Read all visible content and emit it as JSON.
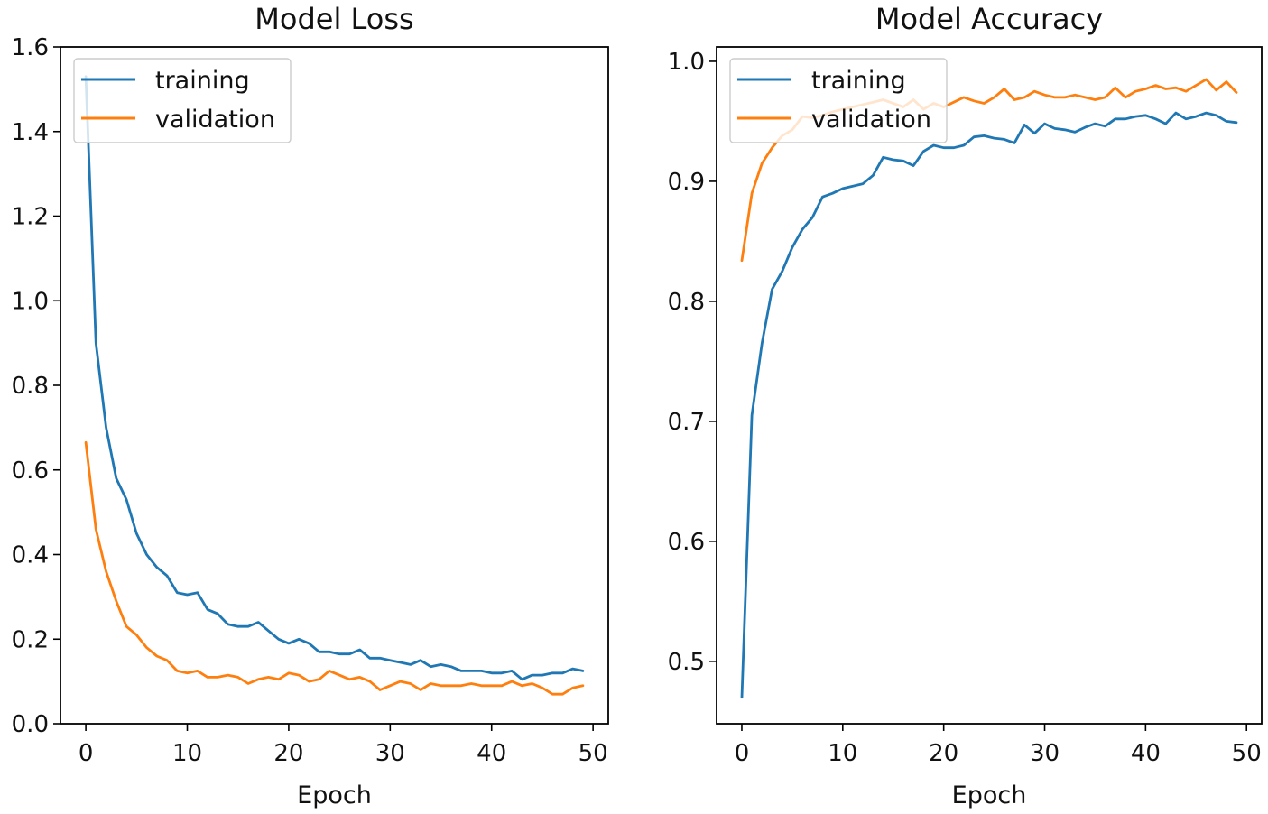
{
  "chart_data": [
    {
      "type": "line",
      "title": "Model Loss",
      "xlabel": "Epoch",
      "ylabel": "",
      "xlim": [
        -2.5,
        51.5
      ],
      "ylim": [
        0.0,
        1.6
      ],
      "xticks": [
        0,
        10,
        20,
        30,
        40,
        50
      ],
      "yticks": [
        0.0,
        0.2,
        0.4,
        0.6,
        0.8,
        1.0,
        1.2,
        1.4,
        1.6
      ],
      "ytick_format": 1,
      "legend_position": "top-left",
      "x": [
        0,
        1,
        2,
        3,
        4,
        5,
        6,
        7,
        8,
        9,
        10,
        11,
        12,
        13,
        14,
        15,
        16,
        17,
        18,
        19,
        20,
        21,
        22,
        23,
        24,
        25,
        26,
        27,
        28,
        29,
        30,
        31,
        32,
        33,
        34,
        35,
        36,
        37,
        38,
        39,
        40,
        41,
        42,
        43,
        44,
        45,
        46,
        47,
        48,
        49
      ],
      "series": [
        {
          "name": "training",
          "color": "#1f77b4",
          "values": [
            1.53,
            0.9,
            0.7,
            0.58,
            0.53,
            0.45,
            0.4,
            0.37,
            0.35,
            0.31,
            0.305,
            0.31,
            0.27,
            0.26,
            0.235,
            0.23,
            0.23,
            0.24,
            0.22,
            0.2,
            0.19,
            0.2,
            0.19,
            0.17,
            0.17,
            0.165,
            0.165,
            0.175,
            0.155,
            0.155,
            0.15,
            0.145,
            0.14,
            0.15,
            0.135,
            0.14,
            0.135,
            0.125,
            0.125,
            0.125,
            0.12,
            0.12,
            0.125,
            0.105,
            0.115,
            0.115,
            0.12,
            0.12,
            0.13,
            0.125
          ]
        },
        {
          "name": "validation",
          "color": "#ff7f0e",
          "values": [
            0.665,
            0.46,
            0.36,
            0.29,
            0.23,
            0.21,
            0.18,
            0.16,
            0.15,
            0.125,
            0.12,
            0.125,
            0.11,
            0.11,
            0.115,
            0.11,
            0.095,
            0.105,
            0.11,
            0.105,
            0.12,
            0.115,
            0.1,
            0.105,
            0.125,
            0.115,
            0.105,
            0.11,
            0.1,
            0.08,
            0.09,
            0.1,
            0.095,
            0.08,
            0.095,
            0.09,
            0.09,
            0.09,
            0.095,
            0.09,
            0.09,
            0.09,
            0.1,
            0.09,
            0.095,
            0.085,
            0.07,
            0.07,
            0.085,
            0.09
          ]
        }
      ]
    },
    {
      "type": "line",
      "title": "Model Accuracy",
      "xlabel": "Epoch",
      "ylabel": "",
      "xlim": [
        -2.5,
        51.5
      ],
      "ylim": [
        0.448,
        1.012
      ],
      "xticks": [
        0,
        10,
        20,
        30,
        40,
        50
      ],
      "yticks": [
        0.5,
        0.6,
        0.7,
        0.8,
        0.9,
        1.0
      ],
      "ytick_format": 1,
      "legend_position": "top-left",
      "x": [
        0,
        1,
        2,
        3,
        4,
        5,
        6,
        7,
        8,
        9,
        10,
        11,
        12,
        13,
        14,
        15,
        16,
        17,
        18,
        19,
        20,
        21,
        22,
        23,
        24,
        25,
        26,
        27,
        28,
        29,
        30,
        31,
        32,
        33,
        34,
        35,
        36,
        37,
        38,
        39,
        40,
        41,
        42,
        43,
        44,
        45,
        46,
        47,
        48,
        49
      ],
      "series": [
        {
          "name": "training",
          "color": "#1f77b4",
          "values": [
            0.47,
            0.705,
            0.765,
            0.81,
            0.825,
            0.845,
            0.86,
            0.87,
            0.887,
            0.89,
            0.894,
            0.896,
            0.898,
            0.905,
            0.92,
            0.918,
            0.917,
            0.913,
            0.925,
            0.93,
            0.928,
            0.928,
            0.93,
            0.937,
            0.938,
            0.936,
            0.935,
            0.932,
            0.947,
            0.94,
            0.948,
            0.944,
            0.943,
            0.941,
            0.945,
            0.948,
            0.946,
            0.952,
            0.952,
            0.954,
            0.955,
            0.952,
            0.948,
            0.957,
            0.952,
            0.954,
            0.957,
            0.955,
            0.95,
            0.949
          ]
        },
        {
          "name": "validation",
          "color": "#ff7f0e",
          "values": [
            0.834,
            0.89,
            0.915,
            0.928,
            0.938,
            0.943,
            0.954,
            0.953,
            0.955,
            0.958,
            0.96,
            0.962,
            0.964,
            0.966,
            0.968,
            0.965,
            0.962,
            0.968,
            0.96,
            0.965,
            0.962,
            0.966,
            0.97,
            0.967,
            0.965,
            0.97,
            0.977,
            0.968,
            0.97,
            0.975,
            0.972,
            0.97,
            0.97,
            0.972,
            0.97,
            0.968,
            0.97,
            0.978,
            0.97,
            0.975,
            0.977,
            0.98,
            0.977,
            0.978,
            0.975,
            0.98,
            0.985,
            0.976,
            0.983,
            0.974
          ]
        }
      ]
    }
  ]
}
